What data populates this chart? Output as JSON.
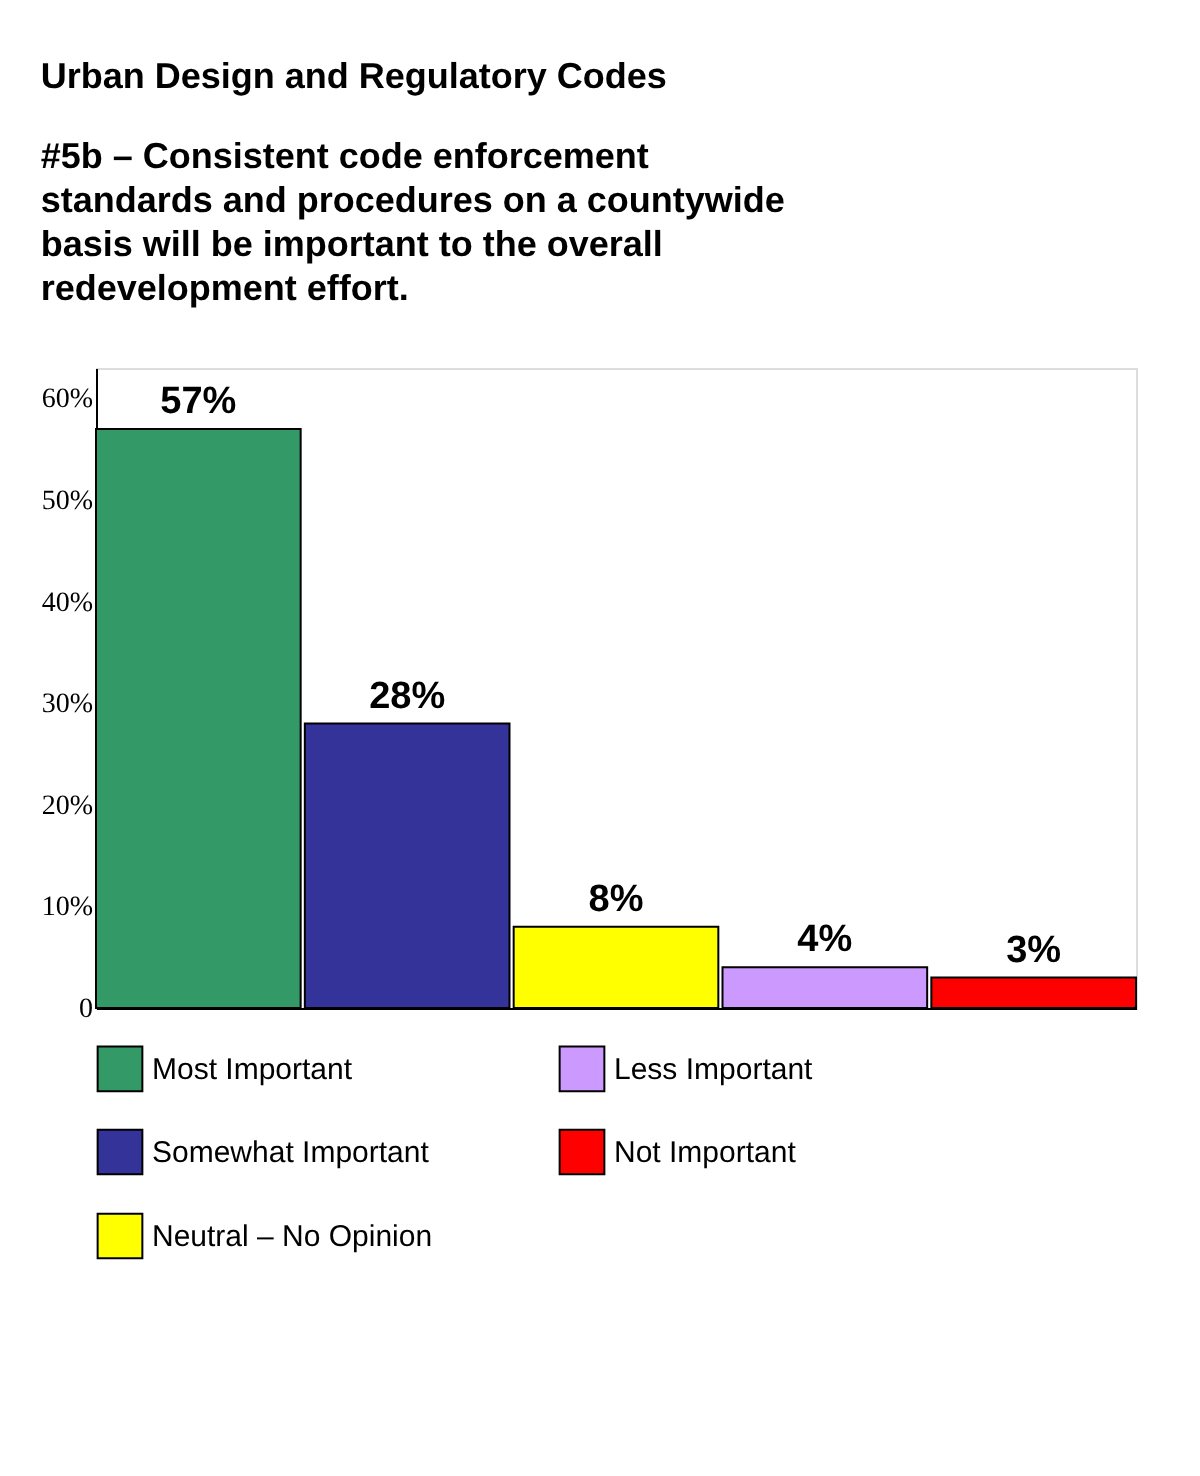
{
  "chart_data": {
    "type": "bar",
    "title": "Urban Design and Regulatory Codes",
    "subtitle": "#5b – Consistent code enforcement standards and procedures on a countywide basis will be important to the overall redevelopment effort.",
    "categories": [
      null
    ],
    "series": [
      {
        "name": "Most Important",
        "color": "#339966",
        "values": [
          57
        ],
        "value_labels": [
          "57%"
        ]
      },
      {
        "name": "Somewhat Important",
        "color": "#333399",
        "values": [
          28
        ],
        "value_labels": [
          "28%"
        ]
      },
      {
        "name": "Neutral – No Opinion",
        "color": "#ffff00",
        "values": [
          8
        ],
        "value_labels": [
          "8%"
        ]
      },
      {
        "name": "Less Important",
        "color": "#cc99ff",
        "values": [
          4
        ],
        "value_labels": [
          "4%"
        ]
      },
      {
        "name": "Not Important",
        "color": "#ff0000",
        "values": [
          3
        ],
        "value_labels": [
          "3%"
        ]
      }
    ],
    "ylim": [
      0,
      63
    ],
    "yticks": [
      0,
      {
        "value": 10,
        "label": "10%"
      },
      {
        "value": 20,
        "label": "20%"
      },
      {
        "value": 30,
        "label": "30%"
      },
      {
        "value": 40,
        "label": "40%"
      },
      {
        "value": 50,
        "label": "50%"
      },
      {
        "value": 60,
        "label": "60%"
      }
    ],
    "grid": false,
    "legend": "bottom"
  }
}
